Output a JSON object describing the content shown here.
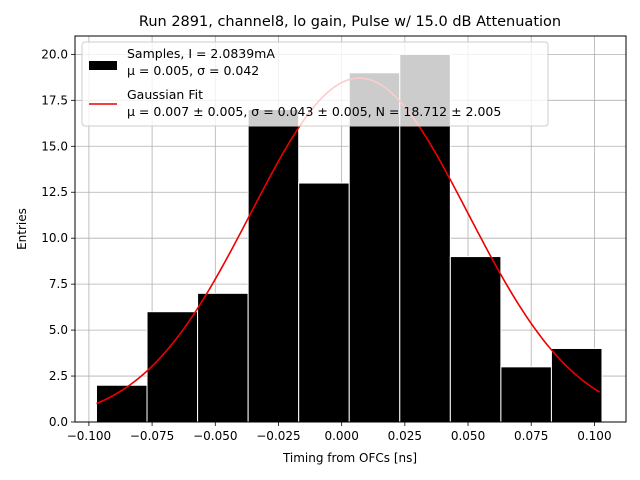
{
  "chart_data": {
    "type": "bar",
    "title": "Run 2891, channel8, lo gain, Pulse w/ 15.0 dB Attenuation",
    "xlabel": "Timing from OFCs [ns]",
    "ylabel": "Entries",
    "xlim": [
      -0.1055,
      0.1125
    ],
    "ylim": [
      0,
      21
    ],
    "xticks": [
      -0.1,
      -0.075,
      -0.05,
      -0.025,
      0.0,
      0.025,
      0.05,
      0.075,
      0.1
    ],
    "xtick_labels": [
      "−0.100",
      "−0.075",
      "−0.050",
      "−0.025",
      "0.000",
      "0.025",
      "0.050",
      "0.075",
      "0.100"
    ],
    "yticks": [
      0,
      2.5,
      5,
      7.5,
      10,
      12.5,
      15,
      17.5,
      20
    ],
    "ytick_labels": [
      "0.0",
      "2.5",
      "5.0",
      "7.5",
      "10.0",
      "12.5",
      "15.0",
      "17.5",
      "20.0"
    ],
    "grid": true,
    "legend_position": "top-left",
    "histogram": {
      "name_line1": "Samples, I = 2.0839mA",
      "name_line2": "μ = 0.005, σ = 0.042",
      "color": "#000000",
      "bin_edges": [
        -0.097,
        -0.077,
        -0.057,
        -0.037,
        -0.017,
        0.003,
        0.023,
        0.043,
        0.063,
        0.083,
        0.103
      ],
      "counts": [
        2,
        6,
        7,
        17,
        13,
        19,
        20,
        9,
        3,
        4
      ]
    },
    "fit": {
      "name_line1": "Gaussian Fit",
      "name_line2": "μ = 0.007 ± 0.005, σ = 0.043 ± 0.005, N = 18.712 ± 2.005",
      "color": "#ee0000",
      "mu": 0.007,
      "sigma": 0.043,
      "N": 18.712,
      "x_range": [
        -0.097,
        0.102
      ]
    }
  }
}
